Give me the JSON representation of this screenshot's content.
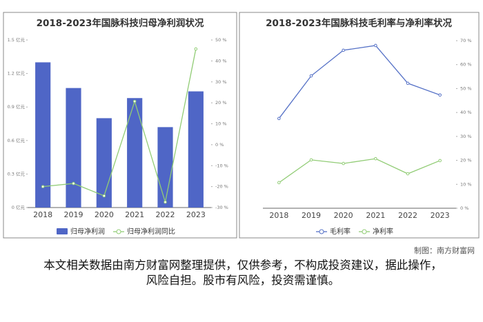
{
  "chart_data": [
    {
      "type": "bar",
      "title": "2018-2023年国脉科技归母净利润状况",
      "categories": [
        "2018",
        "2019",
        "2020",
        "2021",
        "2022",
        "2023"
      ],
      "series": [
        {
          "name": "归母净利润",
          "type": "bar",
          "color": "#4f66c6",
          "values": [
            1.3,
            1.07,
            0.8,
            0.98,
            0.72,
            1.04
          ]
        },
        {
          "name": "归母净利润同比",
          "type": "line",
          "axis": "y2",
          "color": "#91cc75",
          "values": [
            -20,
            -18.5,
            -24.4,
            20.7,
            -27.4,
            45.7
          ]
        }
      ],
      "ylim": [
        0,
        1.5
      ],
      "yticks": [
        {
          "value": 0,
          "label": "0 亿元"
        },
        {
          "value": 0.3,
          "label": "0.3 亿元"
        },
        {
          "value": 0.6,
          "label": "0.6 亿元"
        },
        {
          "value": 0.9,
          "label": "0.9 亿元"
        },
        {
          "value": 1.2,
          "label": "1.2 亿元"
        },
        {
          "value": 1.5,
          "label": "1.5 亿元"
        }
      ],
      "y2lim": [
        -30,
        50
      ],
      "y2ticks": [
        {
          "value": -30,
          "label": "-30 %"
        },
        {
          "value": -20,
          "label": "-20 %"
        },
        {
          "value": -10,
          "label": "-10 %"
        },
        {
          "value": 0,
          "label": "0 %"
        },
        {
          "value": 10,
          "label": "10 %"
        },
        {
          "value": 20,
          "label": "20 %"
        },
        {
          "value": 30,
          "label": "30 %"
        },
        {
          "value": 40,
          "label": "40 %"
        },
        {
          "value": 50,
          "label": "50 %"
        }
      ],
      "grid": false
    },
    {
      "type": "line",
      "title": "2018-2023年国脉科技毛利率与净利率状况",
      "categories": [
        "2018",
        "2019",
        "2020",
        "2021",
        "2022",
        "2023"
      ],
      "series": [
        {
          "name": "毛利率",
          "type": "line",
          "axis": "y2",
          "color": "#5470c6",
          "values": [
            37.5,
            55.3,
            66.0,
            68.0,
            52.2,
            47.3
          ]
        },
        {
          "name": "净利率",
          "type": "line",
          "axis": "y2",
          "color": "#91cc75",
          "values": [
            10.7,
            20.2,
            18.7,
            20.7,
            14.4,
            19.9
          ]
        }
      ],
      "y2lim": [
        0,
        70
      ],
      "y2ticks": [
        {
          "value": 0,
          "label": "0 %"
        },
        {
          "value": 10,
          "label": "10 %"
        },
        {
          "value": 20,
          "label": "20 %"
        },
        {
          "value": 30,
          "label": "30 %"
        },
        {
          "value": 40,
          "label": "40 %"
        },
        {
          "value": 50,
          "label": "50 %"
        },
        {
          "value": 60,
          "label": "60 %"
        },
        {
          "value": 70,
          "label": "70 %"
        }
      ],
      "grid": false
    }
  ],
  "footer": {
    "credit": "制图：南方财富网",
    "disclaimer": "本文相关数据由南方财富网整理提供，仅供参考，不构成投资建议，据此操作，风险自担。股市有风险，投资需谨慎。"
  }
}
